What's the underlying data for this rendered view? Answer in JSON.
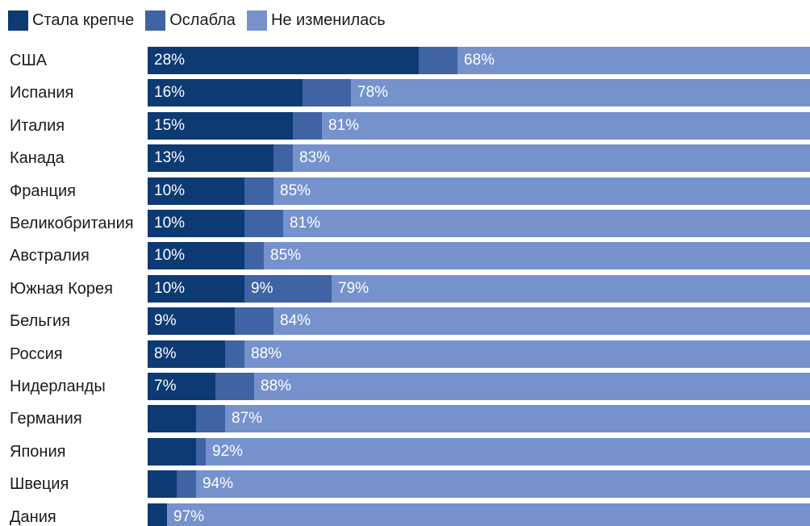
{
  "colors": {
    "stronger": "#0d3a73",
    "weaker": "#3f63a3",
    "unchanged": "#7592cd"
  },
  "legend": [
    {
      "label": "Стала крепче",
      "color": "#0d3a73"
    },
    {
      "label": "Ослабла",
      "color": "#3f63a3"
    },
    {
      "label": "Не изменилась",
      "color": "#7592cd"
    }
  ],
  "chart_data": {
    "type": "bar",
    "orientation": "horizontal",
    "stacked": true,
    "unit": "%",
    "categories": [
      "США",
      "Испания",
      "Италия",
      "Канада",
      "Франция",
      "Великобритания",
      "Австралия",
      "Южная Корея",
      "Бельгия",
      "Россия",
      "Нидерланды",
      "Германия",
      "Япония",
      "Швеция",
      "Дания"
    ],
    "series": [
      {
        "name": "Стала крепче",
        "values": [
          28,
          16,
          15,
          13,
          10,
          10,
          10,
          10,
          9,
          8,
          7,
          5,
          5,
          3,
          2
        ],
        "labels": [
          "28%",
          "16%",
          "15%",
          "13%",
          "10%",
          "10%",
          "10%",
          "10%",
          "9%",
          "8%",
          "7%",
          "",
          "",
          "",
          ""
        ]
      },
      {
        "name": "Ослабла",
        "values": [
          4,
          5,
          3,
          2,
          3,
          4,
          2,
          9,
          4,
          2,
          4,
          3,
          1,
          2,
          0
        ],
        "labels": [
          "",
          "",
          "",
          "",
          "",
          "",
          "",
          "9%",
          "",
          "",
          "",
          "",
          "",
          "",
          ""
        ]
      },
      {
        "name": "Не изменилась",
        "values": [
          68,
          78,
          81,
          83,
          85,
          81,
          85,
          79,
          84,
          88,
          88,
          87,
          92,
          94,
          97
        ],
        "labels": [
          "68%",
          "78%",
          "81%",
          "83%",
          "85%",
          "81%",
          "85%",
          "79%",
          "84%",
          "88%",
          "88%",
          "87%",
          "92%",
          "94%",
          "97%"
        ]
      }
    ]
  }
}
